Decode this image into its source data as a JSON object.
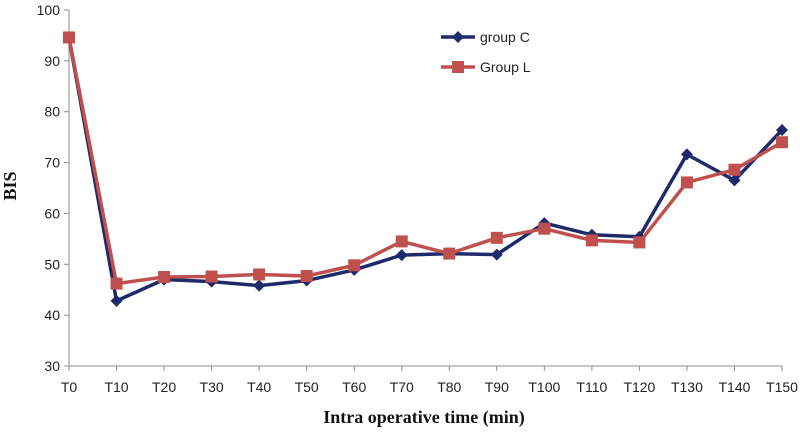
{
  "chart_data": {
    "type": "line",
    "title": "",
    "xlabel": "Intra operative time (min)",
    "ylabel": "BIS",
    "categories": [
      "T0",
      "T10",
      "T20",
      "T30",
      "T40",
      "T50",
      "T60",
      "T70",
      "T80",
      "T90",
      "T100",
      "T110",
      "T120",
      "T130",
      "T140",
      "T150"
    ],
    "ylim": [
      30,
      100
    ],
    "yticks": [
      "30",
      "40",
      "50",
      "60",
      "70",
      "80",
      "90",
      "100"
    ],
    "grid": false,
    "legend_position": "top-center",
    "series": [
      {
        "name": "group C",
        "color": "#1f2a6b",
        "marker": "diamond",
        "values": [
          94.5,
          42.8,
          47.0,
          46.6,
          45.8,
          46.8,
          48.9,
          51.8,
          52.1,
          51.9,
          58.1,
          55.8,
          55.4,
          71.6,
          66.5,
          76.4
        ]
      },
      {
        "name": "Group L",
        "color": "#c0504d",
        "marker": "square",
        "values": [
          94.6,
          46.2,
          47.5,
          47.6,
          48.0,
          47.7,
          49.8,
          54.5,
          52.1,
          55.2,
          57.0,
          54.7,
          54.3,
          66.1,
          68.6,
          74.0
        ]
      }
    ]
  }
}
